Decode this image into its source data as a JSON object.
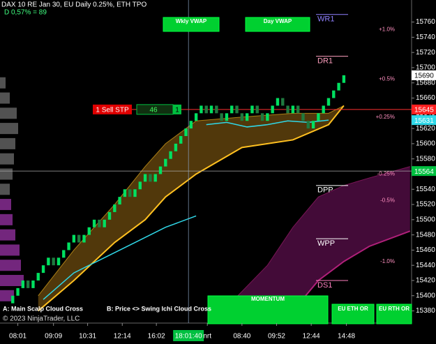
{
  "chart_data": {
    "type": "candlestick",
    "title": "DAX 10  RE Jan 30, EU Daily 0.25%, ETH TPO",
    "subtitle": "D 0,57% = 89",
    "up_color": "#00e060",
    "down_color": "#1f7a3f",
    "open": [
      15390,
      15400,
      15410,
      15420,
      15410,
      15420,
      15430,
      15440,
      15450,
      15440,
      15450,
      15460,
      15470,
      15480,
      15470,
      15480,
      15490,
      15500,
      15490,
      15500,
      15510,
      15520,
      15530,
      15540,
      15530,
      15540,
      15550,
      15560,
      15550,
      15560,
      15570,
      15580,
      15590,
      15600,
      15610,
      15620,
      15630,
      15640,
      15650,
      15640,
      15650,
      15640,
      15630,
      15640,
      15650,
      15640,
      15630,
      15640,
      15650,
      15640,
      15630,
      15640,
      15650,
      15660,
      15650,
      15640,
      15650,
      15640,
      15630,
      15620,
      15630,
      15640,
      15650,
      15660,
      15670,
      15680
    ],
    "close": [
      15400,
      15410,
      15420,
      15410,
      15420,
      15430,
      15440,
      15450,
      15440,
      15450,
      15460,
      15470,
      15480,
      15470,
      15480,
      15490,
      15500,
      15490,
      15500,
      15510,
      15520,
      15530,
      15540,
      15530,
      15540,
      15550,
      15560,
      15550,
      15560,
      15570,
      15580,
      15590,
      15600,
      15610,
      15620,
      15630,
      15640,
      15650,
      15640,
      15650,
      15640,
      15630,
      15640,
      15650,
      15640,
      15630,
      15640,
      15650,
      15640,
      15630,
      15640,
      15650,
      15660,
      15650,
      15640,
      15650,
      15640,
      15630,
      15620,
      15630,
      15640,
      15650,
      15660,
      15670,
      15680,
      15690
    ],
    "xlim": [
      -2.5,
      78.3
    ],
    "ylim": [
      15364,
      15789
    ],
    "yticks": [
      15380,
      15400,
      15420,
      15440,
      15460,
      15480,
      15500,
      15520,
      15540,
      15560,
      15580,
      15600,
      15620,
      15640,
      15660,
      15680,
      15700,
      15720,
      15740,
      15760
    ],
    "xticks": [
      {
        "value": 1,
        "label": "08:01"
      },
      {
        "value": 8,
        "label": "09:09"
      },
      {
        "value": 14.7,
        "label": "10:31"
      },
      {
        "value": 21.5,
        "label": "12:14"
      },
      {
        "value": 28.2,
        "label": "16:02"
      },
      {
        "value": 38.2,
        "label": "nrt"
      },
      {
        "value": 45,
        "label": "08:40"
      },
      {
        "value": 51.8,
        "label": "09:52"
      },
      {
        "value": 58.6,
        "label": "12:44"
      },
      {
        "value": 65.5,
        "label": "14:48"
      }
    ],
    "crosshair": {
      "x": 34.5,
      "label": "18:01:40",
      "y": 15564
    },
    "clouds": [
      {
        "color": "#e8a020",
        "line_color": "#ffc020",
        "x": [
          5,
          12,
          20,
          26,
          30,
          36,
          45,
          55,
          62,
          65
        ],
        "upper": [
          15400,
          15460,
          15520,
          15570,
          15600,
          15630,
          15635,
          15640,
          15640,
          15650
        ],
        "lower": [
          15380,
          15420,
          15470,
          15500,
          15530,
          15560,
          15595,
          15605,
          15625,
          15650
        ]
      },
      {
        "color": "#c020a0",
        "line_color": "#b0207a",
        "x": [
          42,
          50,
          55,
          60,
          65,
          70,
          78
        ],
        "upper": [
          15385,
          15440,
          15490,
          15530,
          15545,
          15555,
          15570
        ],
        "lower": [
          15364,
          15364,
          15380,
          15420,
          15445,
          15465,
          15485
        ]
      }
    ],
    "lines": [
      {
        "color": "#30d8e8",
        "x": [
          6,
          12,
          18,
          24,
          30,
          36
        ],
        "values": [
          15395,
          15430,
          15450,
          15470,
          15490,
          15505
        ]
      },
      {
        "color": "#30d8e8",
        "x": [
          38,
          42,
          46,
          50,
          54,
          58,
          62
        ],
        "values": [
          15625,
          15628,
          15622,
          15625,
          15630,
          15628,
          15631
        ]
      }
    ],
    "levels": [
      {
        "label": "WR1",
        "value": 15770,
        "color": "#9080ff"
      },
      {
        "label": "DR1",
        "value": 15715,
        "color": "#ffa0c0"
      },
      {
        "label": "DPP",
        "value": 15545,
        "color": "#ffffff"
      },
      {
        "label": "WPP",
        "value": 15475,
        "color": "#ffffff"
      },
      {
        "label": "DS1",
        "value": 15420,
        "color": "#ff80c0"
      }
    ],
    "percent_labels": [
      {
        "label": "+1.0%",
        "value": 15750
      },
      {
        "label": "+0.5%",
        "value": 15685
      },
      {
        "label": "+0.25%",
        "value": 15635
      },
      {
        "label": "-0.25%",
        "value": 15560
      },
      {
        "label": "-0.5%",
        "value": 15525
      },
      {
        "label": "-1.0%",
        "value": 15445
      }
    ],
    "price_markers": [
      {
        "value": 15690,
        "color": "#ffffff"
      },
      {
        "value": 15645,
        "color": "#ff2020"
      },
      {
        "value": 15631,
        "color": "#30d8e8"
      },
      {
        "value": 15564,
        "color": "#00c040"
      }
    ],
    "order": {
      "label": "1 Sell STP",
      "quantity": "46",
      "count": "1",
      "value": 15645
    },
    "profile": {
      "prices": [
        15400,
        15420,
        15440,
        15460,
        15480,
        15500,
        15520,
        15540,
        15560,
        15580,
        15600,
        15620,
        15640,
        15660,
        15680
      ],
      "values": [
        20,
        34,
        30,
        28,
        22,
        18,
        16,
        14,
        18,
        20,
        22,
        26,
        24,
        14,
        8
      ],
      "colors": [
        "#c040d0",
        "#c040d0",
        "#c040d0",
        "#c040d0",
        "#c040d0",
        "#c040d0",
        "#c040d0",
        "#888888",
        "#888888",
        "#888888",
        "#888888",
        "#888888",
        "#888888",
        "#888888",
        "#888888"
      ]
    },
    "buttons": [
      "Wkly VWAP",
      "Day VWAP",
      "MOMENTUM",
      "EU ETH OR",
      "EU RTH OR"
    ],
    "footer": [
      "A: Main Scalp Cloud Cross",
      "B: Price <> Swing Ichi Cloud Cross",
      "© 2023 NinjaTrader, LLC"
    ]
  }
}
